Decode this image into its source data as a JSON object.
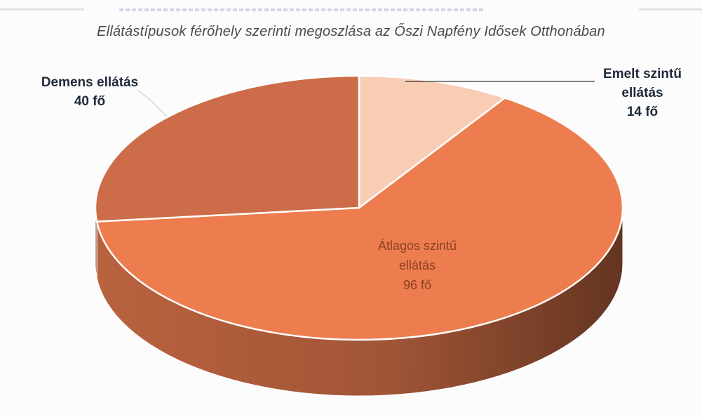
{
  "chart_data": {
    "type": "pie",
    "style": "3d",
    "title": "Ellátástípusok férőhely szerinti megoszlása az Őszi Napfény Idősek Otthonában",
    "slices": [
      {
        "name_lines": [
          "Emelt szintű",
          "ellátás"
        ],
        "value": 14,
        "value_label": "14 fő",
        "color": "#f9cdb5"
      },
      {
        "name_lines": [
          "Átlagos szintű",
          "ellátás"
        ],
        "value": 96,
        "value_label": "96 fő",
        "color": "#ed7d4f"
      },
      {
        "name_lines": [
          "Demens ellátás"
        ],
        "value": 40,
        "value_label": "40 fő",
        "color": "#cc6c48"
      }
    ],
    "labels": {
      "emelt": {
        "line1": "Emelt szintű",
        "line2": "ellátás",
        "value": "14 fő"
      },
      "atlagos": {
        "line1": "Átlagos szintű",
        "line2": "ellátás",
        "value": "96 fő"
      },
      "demens": {
        "line1": "Demens ellátás",
        "value": "40 fő"
      }
    }
  }
}
